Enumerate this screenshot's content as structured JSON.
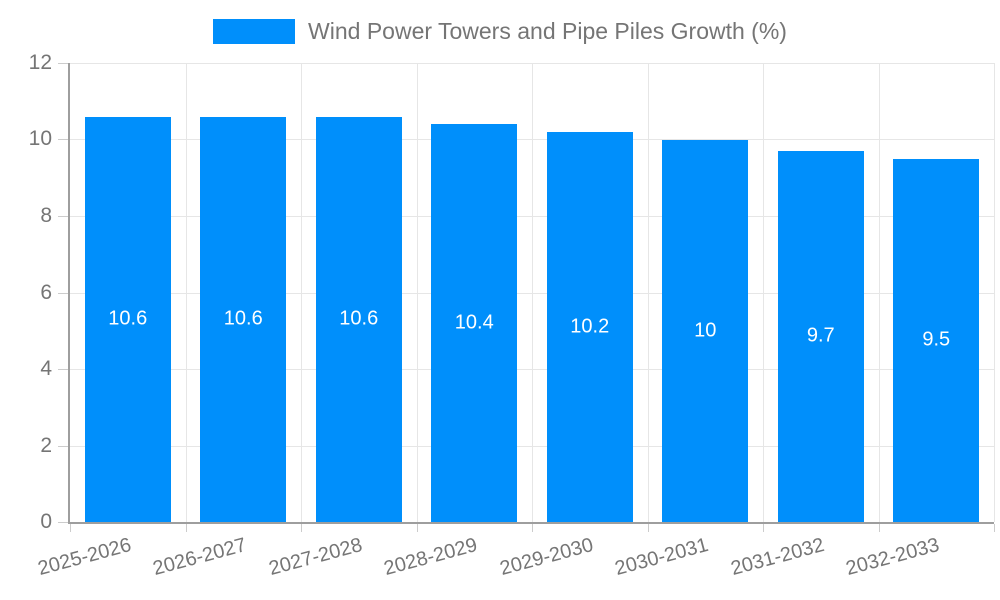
{
  "chart_data": {
    "type": "bar",
    "title": "",
    "categories": [
      "2025-2026",
      "2026-2027",
      "2027-2028",
      "2028-2029",
      "2029-2030",
      "2030-2031",
      "2031-2032",
      "2032-2033"
    ],
    "series": [
      {
        "name": "Wind Power Towers and Pipe Piles Growth (%)",
        "values": [
          10.6,
          10.6,
          10.6,
          10.4,
          10.2,
          10,
          9.7,
          9.5
        ]
      }
    ],
    "bar_labels": [
      "10.6",
      "10.6",
      "10.6",
      "10.4",
      "10.2",
      "10",
      "9.7",
      "9.5"
    ],
    "xlabel": "",
    "ylabel": "",
    "ylim": [
      0,
      12
    ],
    "yticks": [
      0,
      2,
      4,
      6,
      8,
      10,
      12
    ],
    "grid": "both",
    "legend_position": "top-center",
    "colors": {
      "bar": "#008FFB",
      "bar_label_text": "#ffffff",
      "tick_label_text": "#757575",
      "legend_text": "#757575",
      "gridline": "#e6e6e6",
      "tick": "#cccccc",
      "axis": "#9e9e9e"
    }
  }
}
